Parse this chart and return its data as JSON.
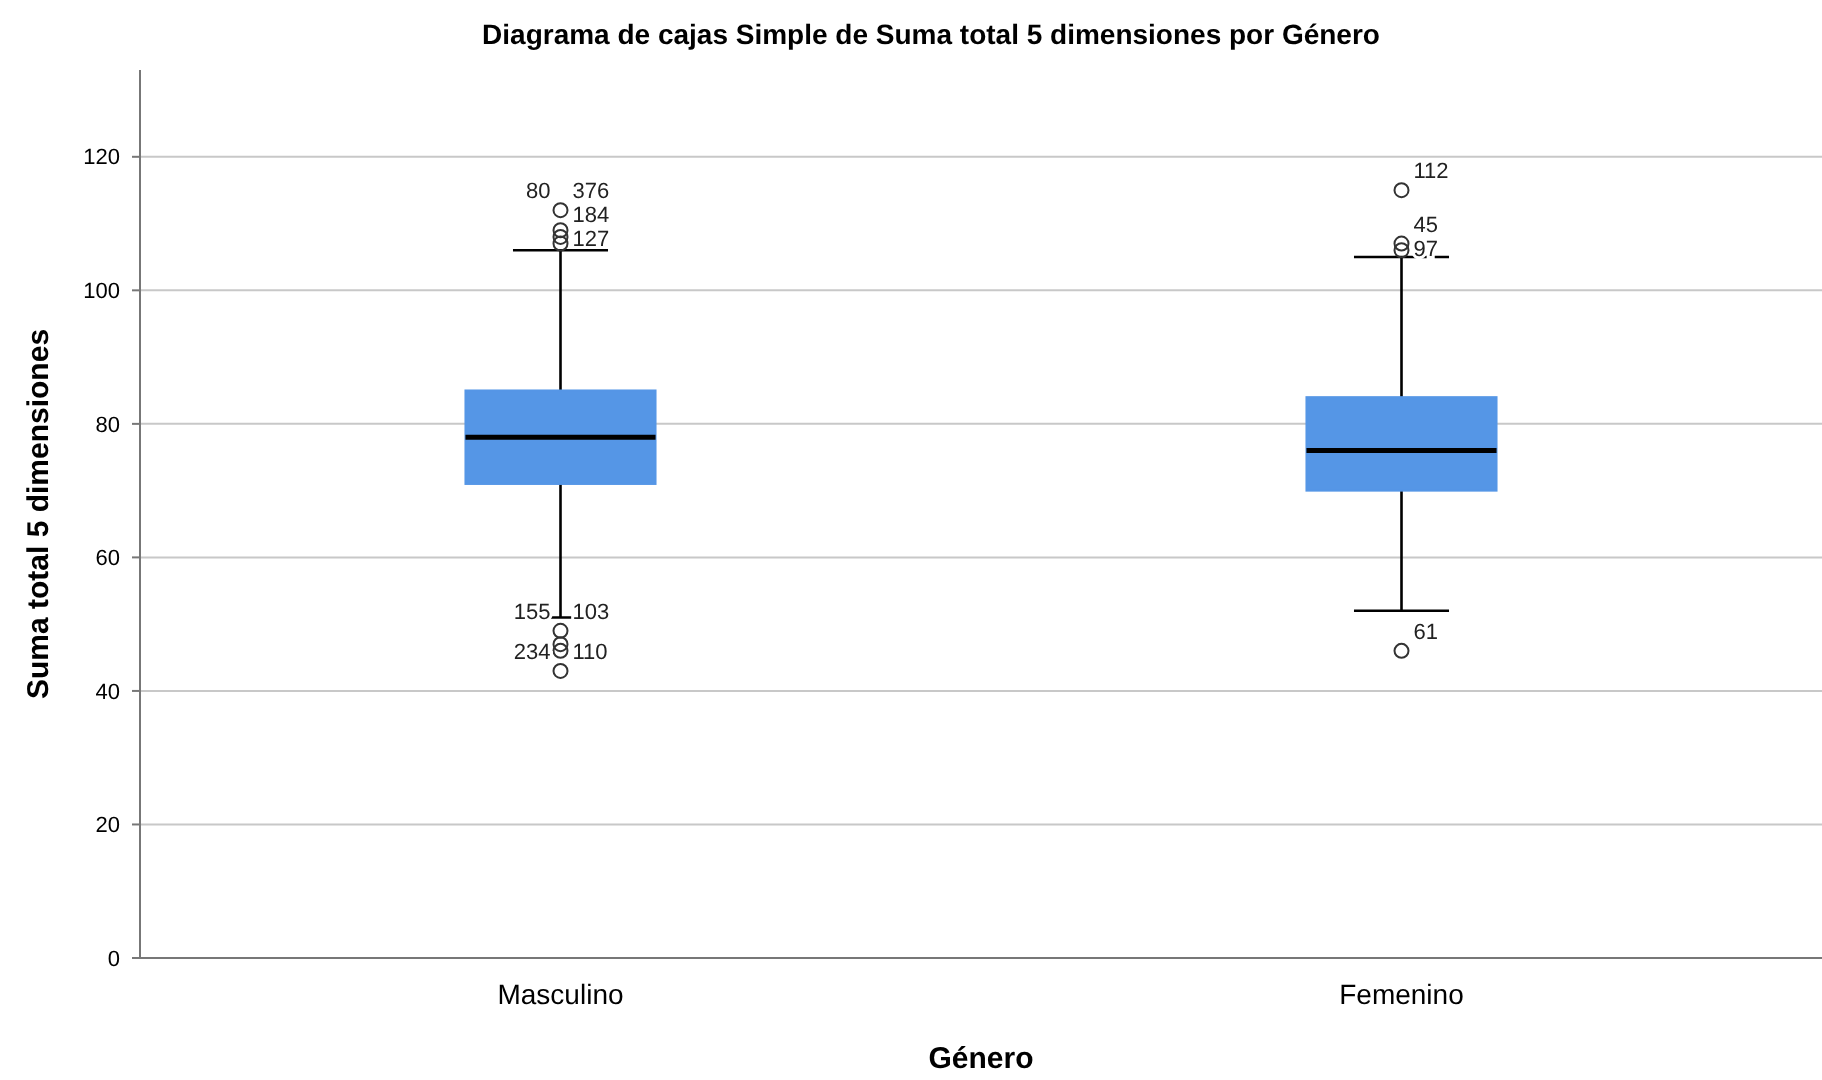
{
  "chart_data": {
    "type": "box",
    "title": "Diagrama de cajas Simple de Suma total 5 dimensiones por Género",
    "xlabel": "Género",
    "ylabel": "Suma total 5 dimensiones",
    "categories": [
      "Masculino",
      "Femenino"
    ],
    "series": [
      {
        "color": "#5596e6",
        "boxes": [
          {
            "low": 51,
            "q1": 71,
            "median": 78,
            "q3": 85,
            "high": 106
          },
          {
            "low": 52,
            "q1": 70,
            "median": 76,
            "q3": 84,
            "high": 105
          }
        ]
      },
      {
        "type": "scatter",
        "color": "#333333",
        "x": [
          "Masculino",
          "Masculino",
          "Masculino",
          "Masculino",
          "Masculino",
          "Masculino",
          "Masculino",
          "Masculino",
          "Femenino",
          "Femenino",
          "Femenino",
          "Femenino"
        ],
        "values": [
          112,
          109,
          108,
          107,
          49,
          47,
          46,
          43,
          115,
          107,
          106,
          46
        ]
      }
    ],
    "ylim": [
      0,
      133
    ],
    "yticks": [
      0,
      20,
      40,
      60,
      80,
      100,
      120
    ],
    "grid": "y",
    "marker": "circle",
    "annotations": [
      {
        "text": "80",
        "x": "Masculino",
        "y": 112
      },
      {
        "text": "376",
        "x": "Masculino",
        "y": 112
      },
      {
        "text": "184",
        "x": "Masculino",
        "y": 109
      },
      {
        "text": "127",
        "x": "Masculino",
        "y": 107
      },
      {
        "text": "155",
        "x": "Masculino",
        "y": 49
      },
      {
        "text": "103",
        "x": "Masculino",
        "y": 49
      },
      {
        "text": "234",
        "x": "Masculino",
        "y": 43
      },
      {
        "text": "110",
        "x": "Masculino",
        "y": 43
      },
      {
        "text": "112",
        "x": "Femenino",
        "y": 115
      },
      {
        "text": "45",
        "x": "Femenino",
        "y": 107
      },
      {
        "text": "97",
        "x": "Femenino",
        "y": 106
      },
      {
        "text": "61",
        "x": "Femenino",
        "y": 46
      }
    ]
  }
}
